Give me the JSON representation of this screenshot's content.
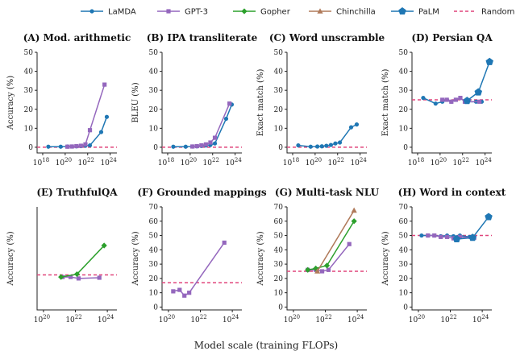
{
  "xlabel": "Model scale (training FLOPs)",
  "legend": [
    {
      "name": "LaMDA",
      "color": "#1f77b4",
      "marker": "circle"
    },
    {
      "name": "GPT-3",
      "color": "#9467bd",
      "marker": "square"
    },
    {
      "name": "Gopher",
      "color": "#2ca02c",
      "marker": "diamond"
    },
    {
      "name": "Chinchilla",
      "color": "#b07a5a",
      "marker": "triangle"
    },
    {
      "name": "PaLM",
      "color": "#1f77b4",
      "marker": "pentagon"
    },
    {
      "name": "Random",
      "color": "#e0457b",
      "marker": "dashed"
    }
  ],
  "chart_data": [
    {
      "type": "line",
      "title": "(A) Mod. arithmetic",
      "ylabel": "Accuracy (%)",
      "xlim": [
        17.5,
        24.6
      ],
      "ylim": [
        -3,
        50
      ],
      "xticks": [
        18,
        20,
        22,
        24
      ],
      "yticks": [
        0,
        10,
        20,
        30,
        40,
        50
      ],
      "random": 0,
      "series": [
        {
          "name": "LaMDA",
          "x": [
            18.5,
            19.6,
            20.2,
            20.6,
            21.0,
            21.4,
            21.8,
            22.2,
            23.2,
            23.7
          ],
          "y": [
            0.3,
            0.3,
            0.4,
            0.4,
            0.5,
            0.6,
            0.8,
            1.0,
            8,
            16
          ]
        },
        {
          "name": "GPT-3",
          "x": [
            20.2,
            20.6,
            21.0,
            21.4,
            21.8,
            22.2,
            23.5
          ],
          "y": [
            0.3,
            0.4,
            0.6,
            0.8,
            1.5,
            9,
            33
          ]
        }
      ]
    },
    {
      "type": "line",
      "title": "(B) IPA transliterate",
      "ylabel": "BLEU (%)",
      "xlim": [
        17.5,
        24.6
      ],
      "ylim": [
        -3,
        50
      ],
      "xticks": [
        18,
        20,
        22,
        24
      ],
      "yticks": [
        0,
        10,
        20,
        30,
        40,
        50
      ],
      "random": 0,
      "series": [
        {
          "name": "LaMDA",
          "x": [
            18.5,
            19.6,
            20.2,
            20.6,
            21.0,
            21.4,
            21.8,
            22.2,
            23.2,
            23.7
          ],
          "y": [
            0.3,
            0.3,
            0.4,
            0.5,
            0.7,
            0.9,
            1.2,
            2.0,
            15,
            22.5
          ]
        },
        {
          "name": "GPT-3",
          "x": [
            20.2,
            20.6,
            21.0,
            21.4,
            21.8,
            22.2,
            23.5
          ],
          "y": [
            0.4,
            0.6,
            1.0,
            1.5,
            2.5,
            5,
            23
          ]
        }
      ]
    },
    {
      "type": "line",
      "title": "(C) Word unscramble",
      "ylabel": "Exact match (%)",
      "xlim": [
        17.5,
        24.6
      ],
      "ylim": [
        -3,
        50
      ],
      "xticks": [
        18,
        20,
        22,
        24
      ],
      "yticks": [
        0,
        10,
        20,
        30,
        40,
        50
      ],
      "random": 0,
      "series": [
        {
          "name": "LaMDA",
          "x": [
            18.5,
            19.6,
            20.2,
            20.6,
            21.0,
            21.4,
            21.8,
            22.2,
            23.2,
            23.7
          ],
          "y": [
            1.0,
            0.3,
            0.4,
            0.5,
            0.8,
            1.2,
            2.0,
            2.5,
            10.5,
            12
          ]
        }
      ]
    },
    {
      "type": "line",
      "title": "(D) Persian QA",
      "ylabel": "Exact match (%)",
      "xlim": [
        17.5,
        24.6
      ],
      "ylim": [
        -3,
        50
      ],
      "xticks": [
        18,
        20,
        22,
        24
      ],
      "yticks": [
        0,
        10,
        20,
        30,
        40,
        50
      ],
      "random": 25,
      "series": [
        {
          "name": "LaMDA",
          "x": [
            18.5,
            19.6,
            20.2,
            20.6,
            21.0,
            21.4,
            21.8,
            22.2,
            23.2,
            23.7
          ],
          "y": [
            26,
            23,
            24,
            25,
            24,
            25,
            26,
            24,
            24,
            24
          ]
        },
        {
          "name": "GPT-3",
          "x": [
            20.2,
            20.6,
            21.0,
            21.4,
            21.8,
            22.2,
            23.5
          ],
          "y": [
            25,
            25,
            24,
            25,
            26,
            24,
            24
          ]
        },
        {
          "name": "PaLM",
          "x": [
            22.4,
            23.4,
            24.4
          ],
          "y": [
            24.5,
            29,
            45
          ]
        }
      ]
    },
    {
      "type": "line",
      "title": "(E) TruthfulQA",
      "ylabel": "Accuracy (%)",
      "xlim": [
        19.6,
        24.6
      ],
      "ylim": [
        -2,
        70
      ],
      "xticks": [
        20,
        22,
        24
      ],
      "yticks": [],
      "random": 22.5,
      "series": [
        {
          "name": "GPT-3",
          "x": [
            21.2,
            21.7,
            22.2,
            23.5
          ],
          "y": [
            21,
            21,
            20,
            20.5
          ]
        },
        {
          "name": "Gopher",
          "x": [
            21.1,
            22.1,
            23.8
          ],
          "y": [
            21,
            23,
            43
          ]
        }
      ]
    },
    {
      "type": "line",
      "title": "(F) Grounded mappings",
      "ylabel": "Accuracy (%)",
      "xlim": [
        19.6,
        24.6
      ],
      "ylim": [
        -2,
        70
      ],
      "xticks": [
        20,
        22,
        24
      ],
      "yticks": [
        0,
        10,
        20,
        30,
        40,
        50,
        60,
        70
      ],
      "random": 17,
      "series": [
        {
          "name": "GPT-3",
          "x": [
            20.3,
            20.7,
            21.0,
            21.3,
            23.5
          ],
          "y": [
            11,
            12,
            8,
            10,
            45
          ]
        }
      ]
    },
    {
      "type": "line",
      "title": "(G) Multi-task NLU",
      "ylabel": "Accuracy (%)",
      "xlim": [
        19.6,
        24.6
      ],
      "ylim": [
        -2,
        70
      ],
      "xticks": [
        20,
        22,
        24
      ],
      "yticks": [
        0,
        10,
        20,
        30,
        40,
        50,
        60,
        70
      ],
      "random": 25,
      "series": [
        {
          "name": "GPT-3",
          "x": [
            20.9,
            21.4,
            21.8,
            22.2,
            23.5
          ],
          "y": [
            26,
            26,
            25,
            26,
            44
          ]
        },
        {
          "name": "Gopher",
          "x": [
            20.9,
            21.4,
            22.1,
            23.8
          ],
          "y": [
            26,
            27,
            29,
            60
          ]
        },
        {
          "name": "Chinchilla",
          "x": [
            21.5,
            23.8
          ],
          "y": [
            25,
            67.5
          ]
        }
      ]
    },
    {
      "type": "line",
      "title": "(H) Word in context",
      "ylabel": "Accuracy (%)",
      "xlim": [
        19.6,
        24.6
      ],
      "ylim": [
        -2,
        70
      ],
      "xticks": [
        20,
        22,
        24
      ],
      "yticks": [
        0,
        10,
        20,
        30,
        40,
        50,
        60,
        70
      ],
      "random": 50,
      "series": [
        {
          "name": "LaMDA",
          "x": [
            20.2,
            20.6,
            21.0,
            21.4,
            21.8,
            22.2,
            22.6,
            23.2
          ],
          "y": [
            50,
            50,
            50,
            49.5,
            50,
            49.5,
            50,
            49
          ]
        },
        {
          "name": "GPT-3",
          "x": [
            20.6,
            21.0,
            21.4,
            21.8,
            22.2,
            22.6,
            23.5
          ],
          "y": [
            50,
            50,
            49,
            49,
            48,
            49,
            48.5
          ]
        },
        {
          "name": "PaLM",
          "x": [
            22.4,
            23.4,
            24.4
          ],
          "y": [
            47.5,
            48.5,
            63
          ]
        }
      ]
    }
  ]
}
